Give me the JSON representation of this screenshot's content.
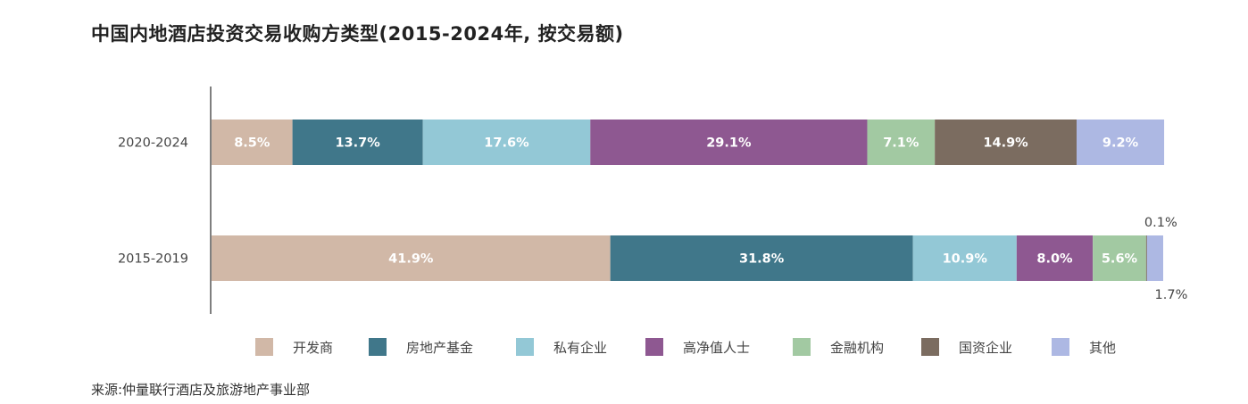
{
  "title": "中国内地酒店投资交易收购方类型(2015-2024年, 按交易额)",
  "source": "来源:仲量联行酒店及旅游地产事业部",
  "colors": {
    "开发商": "#d1b8a7",
    "房地产基金": "#40778a",
    "私有企业": "#93c8d6",
    "高净值人士": "#8e5891",
    "金融机构": "#a2c9a2",
    "国资企业": "#7b6c60",
    "其他": "#adb8e3"
  },
  "chart_data": {
    "type": "bar",
    "orientation": "horizontal-stacked-100",
    "title": "中国内地酒店投资交易收购方类型(2015-2024年, 按交易额)",
    "unit": "%",
    "xlim": [
      0,
      100
    ],
    "categories": [
      "2020-2024",
      "2015-2019"
    ],
    "series": [
      {
        "name": "开发商",
        "values": [
          8.5,
          41.9
        ],
        "labels": [
          "8.5%",
          "41.9%"
        ]
      },
      {
        "name": "房地产基金",
        "values": [
          13.7,
          31.8
        ],
        "labels": [
          "13.7%",
          "31.8%"
        ]
      },
      {
        "name": "私有企业",
        "values": [
          17.6,
          10.9
        ],
        "labels": [
          "17.6%",
          "10.9%"
        ]
      },
      {
        "name": "高净值人士",
        "values": [
          29.1,
          8.0
        ],
        "labels": [
          "29.1%",
          "8.0%"
        ]
      },
      {
        "name": "金融机构",
        "values": [
          7.1,
          5.6
        ],
        "labels": [
          "7.1%",
          "5.6%"
        ]
      },
      {
        "name": "国资企业",
        "values": [
          14.9,
          0.1
        ],
        "labels": [
          "14.9%",
          "0.1%"
        ]
      },
      {
        "name": "其他",
        "values": [
          9.2,
          1.7
        ],
        "labels": [
          "9.2%",
          "1.7%"
        ]
      }
    ],
    "legend_placement": "bottom",
    "grid": false
  }
}
